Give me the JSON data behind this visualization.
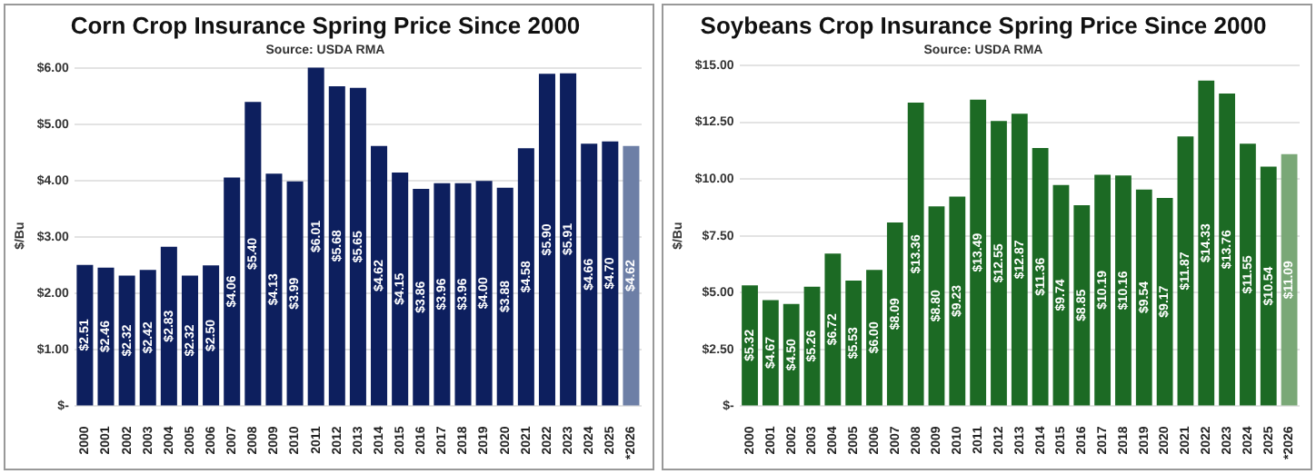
{
  "chart_data": [
    {
      "type": "bar",
      "title": "Corn Crop Insurance Spring Price Since 2000",
      "subtitle": "Source: USDA RMA",
      "ylabel": "$/Bu",
      "categories": [
        "2000",
        "2001",
        "2002",
        "2003",
        "2004",
        "2005",
        "2006",
        "2007",
        "2008",
        "2009",
        "2010",
        "2011",
        "2012",
        "2013",
        "2014",
        "2015",
        "2016",
        "2017",
        "2018",
        "2019",
        "2020",
        "2021",
        "2022",
        "2023",
        "2024",
        "2025",
        "*2026"
      ],
      "values": [
        2.51,
        2.46,
        2.32,
        2.42,
        2.83,
        2.32,
        2.5,
        4.06,
        5.4,
        4.13,
        3.99,
        6.01,
        5.68,
        5.65,
        4.62,
        4.15,
        3.86,
        3.96,
        3.96,
        4.0,
        3.88,
        4.58,
        5.9,
        5.91,
        4.66,
        4.7,
        4.62
      ],
      "value_labels": [
        "$2.51",
        "$2.46",
        "$2.32",
        "$2.42",
        "$2.83",
        "$2.32",
        "$2.50",
        "$4.06",
        "$5.40",
        "$4.13",
        "$3.99",
        "$6.01",
        "$5.68",
        "$5.65",
        "$4.62",
        "$4.15",
        "$3.86",
        "$3.96",
        "$3.96",
        "$4.00",
        "$3.88",
        "$4.58",
        "$5.90",
        "$5.91",
        "$4.66",
        "$4.70",
        "$4.62"
      ],
      "colors": [
        "#0d1f5e",
        "#0d1f5e",
        "#0d1f5e",
        "#0d1f5e",
        "#0d1f5e",
        "#0d1f5e",
        "#0d1f5e",
        "#0d1f5e",
        "#0d1f5e",
        "#0d1f5e",
        "#0d1f5e",
        "#0d1f5e",
        "#0d1f5e",
        "#0d1f5e",
        "#0d1f5e",
        "#0d1f5e",
        "#0d1f5e",
        "#0d1f5e",
        "#0d1f5e",
        "#0d1f5e",
        "#0d1f5e",
        "#0d1f5e",
        "#0d1f5e",
        "#0d1f5e",
        "#0d1f5e",
        "#0d1f5e",
        "#6d7fa6"
      ],
      "ylim": [
        0,
        6.05
      ],
      "yticks": [
        {
          "value": 0,
          "label": "$-"
        },
        {
          "value": 1,
          "label": "$1.00"
        },
        {
          "value": 2,
          "label": "$2.00"
        },
        {
          "value": 3,
          "label": "$3.00"
        },
        {
          "value": 4,
          "label": "$4.00"
        },
        {
          "value": 5,
          "label": "$5.00"
        },
        {
          "value": 6,
          "label": "$6.00"
        }
      ],
      "grid": "y",
      "legend": false
    },
    {
      "type": "bar",
      "title": "Soybeans Crop Insurance Spring Price Since 2000",
      "subtitle": "Source: USDA RMA",
      "ylabel": "$/Bu",
      "categories": [
        "2000",
        "2001",
        "2002",
        "2003",
        "2004",
        "2005",
        "2006",
        "2007",
        "2008",
        "2009",
        "2010",
        "2011",
        "2012",
        "2013",
        "2014",
        "2015",
        "2016",
        "2017",
        "2018",
        "2019",
        "2020",
        "2021",
        "2022",
        "2023",
        "2024",
        "2025",
        "*2026"
      ],
      "values": [
        5.32,
        4.67,
        4.5,
        5.26,
        6.72,
        5.53,
        6.0,
        8.09,
        13.36,
        8.8,
        9.23,
        13.49,
        12.55,
        12.87,
        11.36,
        9.74,
        8.85,
        10.19,
        10.16,
        9.54,
        9.17,
        11.87,
        14.33,
        13.76,
        11.55,
        10.54,
        11.09
      ],
      "value_labels": [
        "$5.32",
        "$4.67",
        "$4.50",
        "$5.26",
        "$6.72",
        "$5.53",
        "$6.00",
        "$8.09",
        "$13.36",
        "$8.80",
        "$9.23",
        "$13.49",
        "$12.55",
        "$12.87",
        "$11.36",
        "$9.74",
        "$8.85",
        "$10.19",
        "$10.16",
        "$9.54",
        "$9.17",
        "$11.87",
        "$14.33",
        "$13.76",
        "$11.55",
        "$10.54",
        "$11.09"
      ],
      "colors": [
        "#1c6a24",
        "#1c6a24",
        "#1c6a24",
        "#1c6a24",
        "#1c6a24",
        "#1c6a24",
        "#1c6a24",
        "#1c6a24",
        "#1c6a24",
        "#1c6a24",
        "#1c6a24",
        "#1c6a24",
        "#1c6a24",
        "#1c6a24",
        "#1c6a24",
        "#1c6a24",
        "#1c6a24",
        "#1c6a24",
        "#1c6a24",
        "#1c6a24",
        "#1c6a24",
        "#1c6a24",
        "#1c6a24",
        "#1c6a24",
        "#1c6a24",
        "#1c6a24",
        "#7aa877"
      ],
      "ylim": [
        0,
        15
      ],
      "yticks": [
        {
          "value": 0,
          "label": "$-"
        },
        {
          "value": 2.5,
          "label": "$2.50"
        },
        {
          "value": 5,
          "label": "$5.00"
        },
        {
          "value": 7.5,
          "label": "$7.50"
        },
        {
          "value": 10,
          "label": "$10.00"
        },
        {
          "value": 12.5,
          "label": "$12.50"
        },
        {
          "value": 15,
          "label": "$15.00"
        }
      ],
      "grid": "y",
      "legend": false
    }
  ]
}
